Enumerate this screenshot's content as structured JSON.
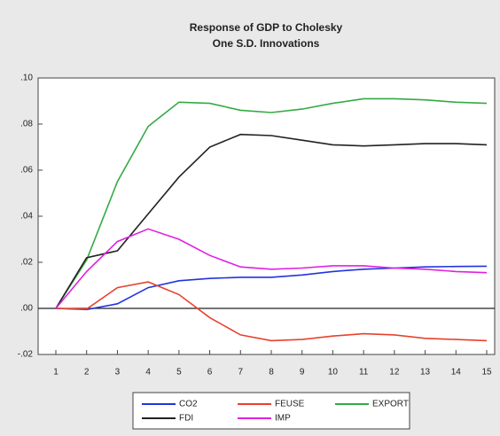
{
  "chart_data": {
    "type": "line",
    "title": "Response of GDP to Cholesky",
    "subtitle": "One S.D. Innovations",
    "categories": [
      "1",
      "2",
      "3",
      "4",
      "5",
      "6",
      "7",
      "8",
      "9",
      "10",
      "11",
      "12",
      "13",
      "14",
      "15"
    ],
    "series": [
      {
        "name": "CO2",
        "color": "#2233dd",
        "values": [
          0,
          -0.0005,
          0.002,
          0.009,
          0.012,
          0.013,
          0.0135,
          0.0135,
          0.0145,
          0.016,
          0.017,
          0.0175,
          0.018,
          0.0182,
          0.0183
        ]
      },
      {
        "name": "FEUSE",
        "color": "#e8412c",
        "values": [
          0,
          -0.0003,
          0.009,
          0.0115,
          0.006,
          -0.004,
          -0.0115,
          -0.014,
          -0.0135,
          -0.012,
          -0.011,
          -0.0115,
          -0.013,
          -0.0135,
          -0.014
        ]
      },
      {
        "name": "EXPORT",
        "color": "#33aa44",
        "values": [
          0,
          0.021,
          0.055,
          0.079,
          0.0895,
          0.089,
          0.086,
          0.085,
          0.0865,
          0.089,
          0.091,
          0.091,
          0.0905,
          0.0895,
          0.089
        ]
      },
      {
        "name": "FDI",
        "color": "#222222",
        "values": [
          0,
          0.022,
          0.025,
          0.041,
          0.057,
          0.07,
          0.0755,
          0.075,
          0.073,
          0.071,
          0.0705,
          0.071,
          0.0715,
          0.0715,
          0.071
        ]
      },
      {
        "name": "IMP",
        "color": "#e020e0",
        "values": [
          0,
          0.016,
          0.029,
          0.0345,
          0.03,
          0.023,
          0.018,
          0.017,
          0.0175,
          0.0185,
          0.0185,
          0.0175,
          0.017,
          0.016,
          0.0155
        ]
      }
    ],
    "ylim": [
      -0.02,
      0.1
    ],
    "yticks": [
      {
        "value": -0.02,
        "label": "-.02"
      },
      {
        "value": 0,
        "label": ".00"
      },
      {
        "value": 0.02,
        "label": ".02"
      },
      {
        "value": 0.04,
        "label": ".04"
      },
      {
        "value": 0.06,
        "label": ".06"
      },
      {
        "value": 0.08,
        "label": ".08"
      },
      {
        "value": 0.1,
        "label": ".10"
      }
    ],
    "zero_line": true,
    "legend": "bottom"
  }
}
